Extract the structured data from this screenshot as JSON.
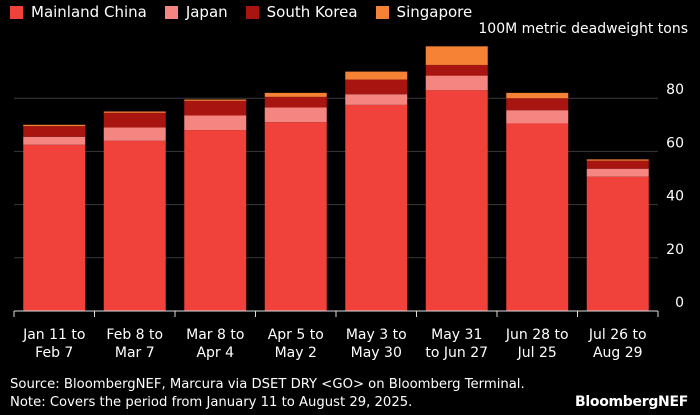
{
  "chart_data": {
    "type": "bar",
    "stacked": true,
    "unit_label": "100M metric deadweight tons",
    "categories": [
      [
        "Jan 11 to",
        "Feb 7"
      ],
      [
        "Feb 8 to",
        "Mar 7"
      ],
      [
        "Mar 8 to",
        "Apr 4"
      ],
      [
        "Apr 5 to",
        "May 2"
      ],
      [
        "May 3 to",
        "May 30"
      ],
      [
        "May 31",
        "to Jun 27"
      ],
      [
        "Jun 28 to",
        "Jul 25"
      ],
      [
        "Jul 26 to",
        "Aug 29"
      ]
    ],
    "series": [
      {
        "name": "Mainland China",
        "color": "#f0413a",
        "values": [
          62.5,
          64.0,
          68.0,
          71.0,
          77.5,
          83.0,
          70.5,
          50.5
        ]
      },
      {
        "name": "Japan",
        "color": "#f48580",
        "values": [
          3.0,
          5.0,
          5.5,
          5.5,
          4.0,
          5.5,
          5.0,
          3.0
        ]
      },
      {
        "name": "South Korea",
        "color": "#a8140f",
        "values": [
          4.0,
          5.5,
          5.5,
          4.0,
          5.5,
          4.0,
          4.5,
          3.0
        ]
      },
      {
        "name": "Singapore",
        "color": "#f58235",
        "values": [
          0.5,
          0.5,
          0.5,
          1.5,
          3.0,
          7.0,
          2.0,
          0.5
        ]
      }
    ],
    "ylim": [
      0,
      100
    ],
    "yticks": [
      0,
      20,
      40,
      60,
      80
    ],
    "grid": true
  },
  "footer": {
    "source": "Source: BloombergNEF, Marcura via DSET DRY <GO> on Bloomberg Terminal.",
    "note": "Note: Covers the period from January 11 to August 29, 2025."
  },
  "brand": "BloombergNEF"
}
